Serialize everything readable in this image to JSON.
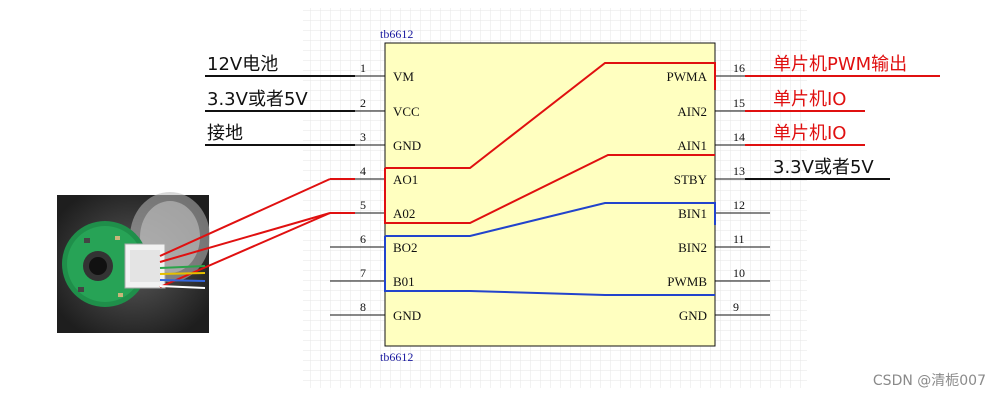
{
  "chip": {
    "name_top": "tb6612",
    "name_bottom": "tb6612"
  },
  "left_pins": [
    {
      "num": "1",
      "name": "VM"
    },
    {
      "num": "2",
      "name": "VCC"
    },
    {
      "num": "3",
      "name": "GND"
    },
    {
      "num": "4",
      "name": "AO1"
    },
    {
      "num": "5",
      "name": "A02"
    },
    {
      "num": "6",
      "name": "BO2"
    },
    {
      "num": "7",
      "name": "B01"
    },
    {
      "num": "8",
      "name": "GND"
    }
  ],
  "right_pins": [
    {
      "num": "16",
      "name": "PWMA"
    },
    {
      "num": "15",
      "name": "AIN2"
    },
    {
      "num": "14",
      "name": "AIN1"
    },
    {
      "num": "13",
      "name": "STBY"
    },
    {
      "num": "12",
      "name": "BIN1"
    },
    {
      "num": "11",
      "name": "BIN2"
    },
    {
      "num": "10",
      "name": "PWMB"
    },
    {
      "num": "9",
      "name": "GND"
    }
  ],
  "left_labels": {
    "vm": "12V电池",
    "vcc": "3.3V或者5V",
    "gnd": "接地"
  },
  "right_labels": {
    "pwma": "单片机PWM输出",
    "ain2": "单片机IO",
    "ain1": "单片机IO",
    "stby": "3.3V或者5V"
  },
  "colors": {
    "chip_fill": "#ffffc0",
    "red": "#e01010",
    "blue": "#2244cc",
    "grid": "#e6e6e6"
  },
  "watermark": "CSDN @清栀007"
}
